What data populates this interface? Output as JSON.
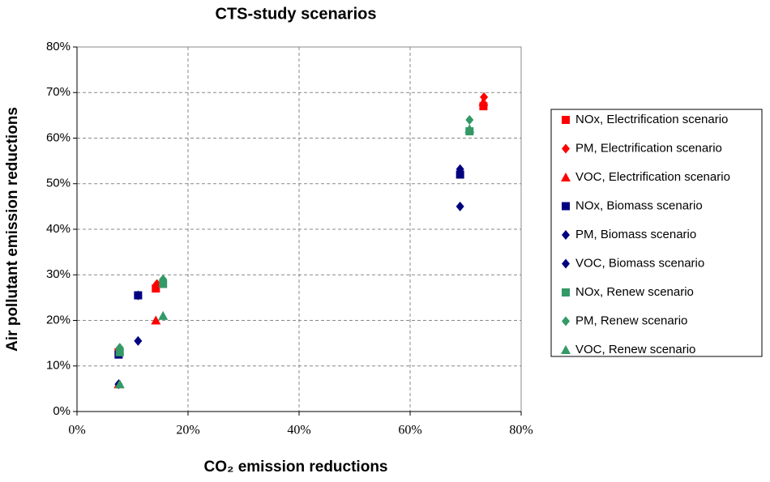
{
  "chart_data": {
    "type": "scatter",
    "title": "CTS-study scenarios",
    "x_label": "CO₂ emission reductions",
    "y_label": "Air pollutant emission reductions",
    "xlim": [
      0,
      80
    ],
    "ylim": [
      0,
      80
    ],
    "xticks": [
      {
        "value": 0,
        "label": "0%"
      },
      {
        "value": 20,
        "label": "20%"
      },
      {
        "value": 40,
        "label": "40%"
      },
      {
        "value": 60,
        "label": "60%"
      },
      {
        "value": 80,
        "label": "80%"
      }
    ],
    "yticks": [
      {
        "value": 0,
        "label": "0%"
      },
      {
        "value": 10,
        "label": "10%"
      },
      {
        "value": 20,
        "label": "20%"
      },
      {
        "value": 30,
        "label": "30%"
      },
      {
        "value": 40,
        "label": "40%"
      },
      {
        "value": 50,
        "label": "50%"
      },
      {
        "value": 60,
        "label": "60%"
      },
      {
        "value": 70,
        "label": "70%"
      },
      {
        "value": 80,
        "label": "80%"
      }
    ],
    "grid": true,
    "legend": "right",
    "series": [
      {
        "name": "NOx, Electrification scenario",
        "color": "#ff0000",
        "marker": "square",
        "x": [
          7.5,
          14.2,
          73.2
        ],
        "values": [
          13,
          27,
          67
        ]
      },
      {
        "name": "PM, Electrification scenario",
        "color": "#ff0000",
        "marker": "diamond",
        "x": [
          7.5,
          14.4,
          73.3
        ],
        "values": [
          13.5,
          28,
          69
        ]
      },
      {
        "name": "VOC, Electrification scenario",
        "color": "#ff0000",
        "marker": "triangle",
        "x": [
          7.5,
          14.2,
          73.2
        ],
        "values": [
          6,
          20,
          68
        ]
      },
      {
        "name": "NOx, Biomass scenario",
        "color": "#000080",
        "marker": "square",
        "x": [
          7.5,
          11,
          69
        ],
        "values": [
          12.5,
          25.5,
          52
        ]
      },
      {
        "name": "PM, Biomass scenario",
        "color": "#000080",
        "marker": "diamond",
        "x": [
          7.5,
          11,
          69
        ],
        "values": [
          13,
          25.5,
          53.2
        ]
      },
      {
        "name": "VOC, Biomass scenario",
        "color": "#000080",
        "marker": "diamond",
        "x": [
          7.5,
          11,
          69
        ],
        "values": [
          6,
          15.5,
          45
        ]
      },
      {
        "name": "NOx, Renew scenario",
        "color": "#339966",
        "marker": "square",
        "x": [
          7.7,
          15.5,
          70.7
        ],
        "values": [
          13,
          28,
          61.5
        ]
      },
      {
        "name": "PM, Renew scenario",
        "color": "#339966",
        "marker": "diamond",
        "x": [
          7.7,
          15.5,
          70.7
        ],
        "values": [
          14,
          29,
          64
        ]
      },
      {
        "name": "VOC, Renew scenario",
        "color": "#339966",
        "marker": "triangle",
        "x": [
          7.7,
          15.5,
          70.7
        ],
        "values": [
          6,
          21,
          62
        ]
      }
    ]
  }
}
